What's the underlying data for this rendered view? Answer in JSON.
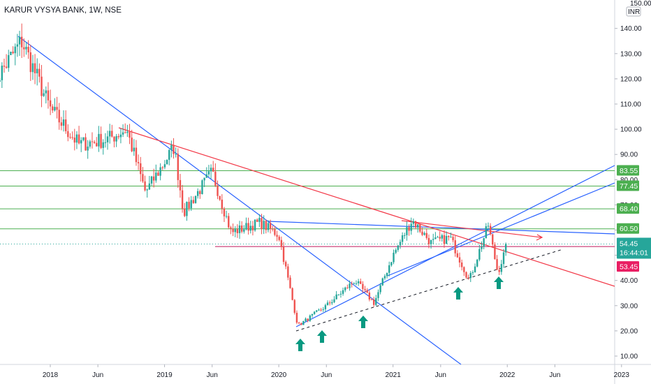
{
  "header": {
    "title": "KARUR VYSYA BANK, 1W, NSE"
  },
  "axis": {
    "currency_label": "INR",
    "corner_text": "150.00"
  },
  "colors": {
    "up": "#26a69a",
    "down": "#ef5350",
    "green_level": "#4caf50",
    "blue_line": "#2962ff",
    "red_line": "#f23645",
    "magenta": "#c2185b",
    "arrow": "#089981",
    "last_tag": "#26a69a",
    "low_tag": "#e91e63"
  },
  "chart_data": {
    "type": "candlestick",
    "symbol": "KARUR VYSYA BANK",
    "interval": "1W",
    "exchange": "NSE",
    "x_ticks": [
      "2018",
      "Jun",
      "2019",
      "Jun",
      "2020",
      "Jun",
      "2021",
      "Jun",
      "2022",
      "Jun",
      "2023"
    ],
    "y_ticks": [
      "140.00",
      "130.00",
      "120.00",
      "110.00",
      "100.00",
      "90.00",
      "80.00",
      "70.00",
      "60.00",
      "50.00",
      "40.00",
      "30.00",
      "20.00",
      "10.00"
    ],
    "ylim": [
      8,
      152
    ],
    "horizontal_levels": [
      83.55,
      77.45,
      68.4,
      60.5
    ],
    "magenta_level": 53.45,
    "last_price": "54.45",
    "countdown": "16:44:01",
    "low_tag": "53.45",
    "support_arrows": 5,
    "price_path_keypoints": [
      {
        "date": "2017-07",
        "price": 118
      },
      {
        "date": "2017-10",
        "price": 135
      },
      {
        "date": "2018-01",
        "price": 108
      },
      {
        "date": "2018-04",
        "price": 94
      },
      {
        "date": "2018-07",
        "price": 96
      },
      {
        "date": "2018-09",
        "price": 100
      },
      {
        "date": "2018-11",
        "price": 75
      },
      {
        "date": "2019-02",
        "price": 93
      },
      {
        "date": "2019-03",
        "price": 67
      },
      {
        "date": "2019-06",
        "price": 83
      },
      {
        "date": "2019-08",
        "price": 59
      },
      {
        "date": "2019-11",
        "price": 63
      },
      {
        "date": "2020-01",
        "price": 58
      },
      {
        "date": "2020-03",
        "price": 22
      },
      {
        "date": "2020-06",
        "price": 30
      },
      {
        "date": "2020-09",
        "price": 40
      },
      {
        "date": "2020-11",
        "price": 31
      },
      {
        "date": "2021-01",
        "price": 50
      },
      {
        "date": "2021-03",
        "price": 64
      },
      {
        "date": "2021-05",
        "price": 55
      },
      {
        "date": "2021-07",
        "price": 57
      },
      {
        "date": "2021-09",
        "price": 40
      },
      {
        "date": "2021-11",
        "price": 62
      },
      {
        "date": "2021-12",
        "price": 43
      },
      {
        "date": "2022-01",
        "price": 54.45
      }
    ]
  }
}
